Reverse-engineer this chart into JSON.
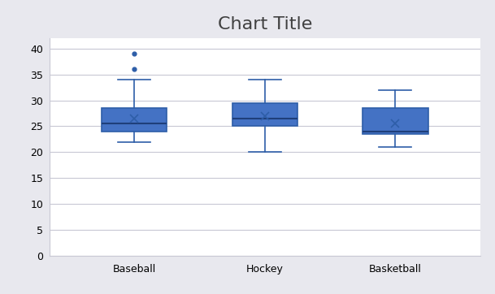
{
  "title": "Chart Title",
  "categories": [
    "Baseball",
    "Hockey",
    "Basketball"
  ],
  "box_data": [
    {
      "med": 25.5,
      "q1": 24.0,
      "q3": 28.5,
      "whislo": 22.0,
      "whishi": 34.0,
      "mean": 26.5,
      "fliers": [
        36.0,
        39.0
      ]
    },
    {
      "med": 26.5,
      "q1": 25.0,
      "q3": 29.5,
      "whislo": 20.0,
      "whishi": 34.0,
      "mean": 27.0,
      "fliers": []
    },
    {
      "med": 24.0,
      "q1": 23.5,
      "q3": 28.5,
      "whislo": 21.0,
      "whishi": 32.0,
      "mean": 25.5,
      "fliers": []
    }
  ],
  "box_color": "#2E5EA8",
  "box_face_color": "#4472C4",
  "median_color": "#1F3F7A",
  "whisker_color": "#2E5EA8",
  "flier_color": "#2E5EA8",
  "mean_marker_color": "#2E5EA8",
  "ylim": [
    0,
    42
  ],
  "yticks": [
    0,
    5,
    10,
    15,
    20,
    25,
    30,
    35,
    40
  ],
  "grid_color": "#C8C8D4",
  "plot_bg_color": "#FFFFFF",
  "outer_bg_color": "#E8E8EE",
  "title_fontsize": 16,
  "tick_fontsize": 9,
  "box_width": 0.5
}
